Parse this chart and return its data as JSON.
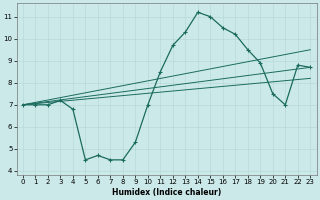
{
  "xlabel": "Humidex (Indice chaleur)",
  "xlim": [
    -0.5,
    23.5
  ],
  "ylim": [
    3.8,
    11.6
  ],
  "yticks": [
    4,
    5,
    6,
    7,
    8,
    9,
    10,
    11
  ],
  "xticks": [
    0,
    1,
    2,
    3,
    4,
    5,
    6,
    7,
    8,
    9,
    10,
    11,
    12,
    13,
    14,
    15,
    16,
    17,
    18,
    19,
    20,
    21,
    22,
    23
  ],
  "bg_color": "#cce9e9",
  "line_color": "#1a6b5e",
  "grid_major_color": "#b8d8d8",
  "grid_minor_color": "#d0e8e8",
  "main_x": [
    0,
    1,
    2,
    3,
    4,
    5,
    6,
    7,
    8,
    9,
    10,
    11,
    12,
    13,
    14,
    15,
    16,
    17,
    18,
    19,
    20,
    21,
    22,
    23
  ],
  "main_y": [
    7.0,
    7.0,
    7.0,
    7.2,
    6.8,
    4.5,
    4.7,
    4.5,
    4.5,
    5.3,
    7.0,
    8.5,
    9.7,
    10.3,
    11.2,
    11.0,
    10.5,
    10.2,
    9.5,
    8.9,
    7.5,
    7.0,
    8.8,
    8.7
  ],
  "trend1_x": [
    0,
    23
  ],
  "trend1_y": [
    7.0,
    9.5
  ],
  "trend2_x": [
    0,
    23
  ],
  "trend2_y": [
    7.0,
    8.7
  ],
  "trend3_x": [
    0,
    23
  ],
  "trend3_y": [
    7.0,
    8.2
  ]
}
